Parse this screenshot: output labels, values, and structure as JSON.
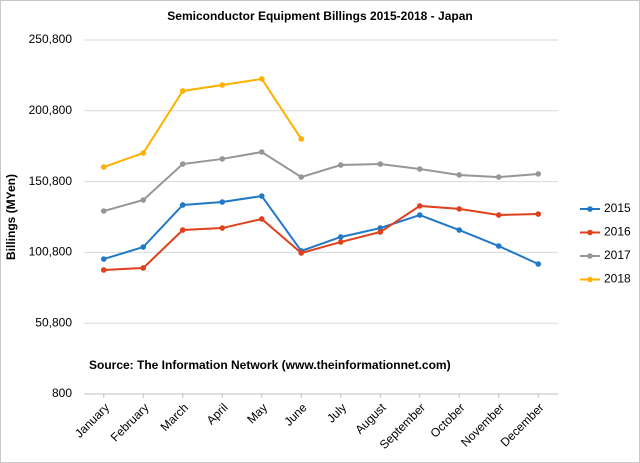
{
  "chart_data": {
    "type": "line",
    "title": "Semiconductor Equipment Billings 2015-2018 - Japan",
    "ylabel": "Billings (MYen)",
    "annotation": "Source: The Information Network (www.theinformationnet.com)",
    "categories": [
      "January",
      "February",
      "March",
      "April",
      "May",
      "June",
      "July",
      "August",
      "September",
      "October",
      "November",
      "December"
    ],
    "series": [
      {
        "name": "2015",
        "color": "#1f78c8",
        "values": [
          96100,
          104600,
          134300,
          136400,
          140600,
          101800,
          111700,
          118000,
          127200,
          116600,
          105300,
          92600
        ]
      },
      {
        "name": "2016",
        "color": "#e0401c",
        "values": [
          88400,
          89800,
          116600,
          118000,
          124400,
          100400,
          108100,
          115200,
          133600,
          131500,
          127200,
          127900
        ]
      },
      {
        "name": "2017",
        "color": "#969696",
        "values": [
          130000,
          137800,
          163200,
          166800,
          171700,
          154000,
          162500,
          163200,
          159700,
          155500,
          154000,
          156200
        ]
      },
      {
        "name": "2018",
        "color": "#ffb000",
        "values": [
          161100,
          171000,
          214800,
          219000,
          223300,
          180900,
          null,
          null,
          null,
          null,
          null,
          null
        ]
      }
    ],
    "ylim": [
      800,
      250800
    ],
    "yticks": [
      {
        "value": 800,
        "label": "800"
      },
      {
        "value": 50800,
        "label": "50,800"
      },
      {
        "value": 100800,
        "label": "100,800"
      },
      {
        "value": 150800,
        "label": "150,800"
      },
      {
        "value": 200800,
        "label": "200,800"
      },
      {
        "value": 250800,
        "label": "250,800"
      }
    ],
    "grid": true,
    "legend": "right"
  }
}
